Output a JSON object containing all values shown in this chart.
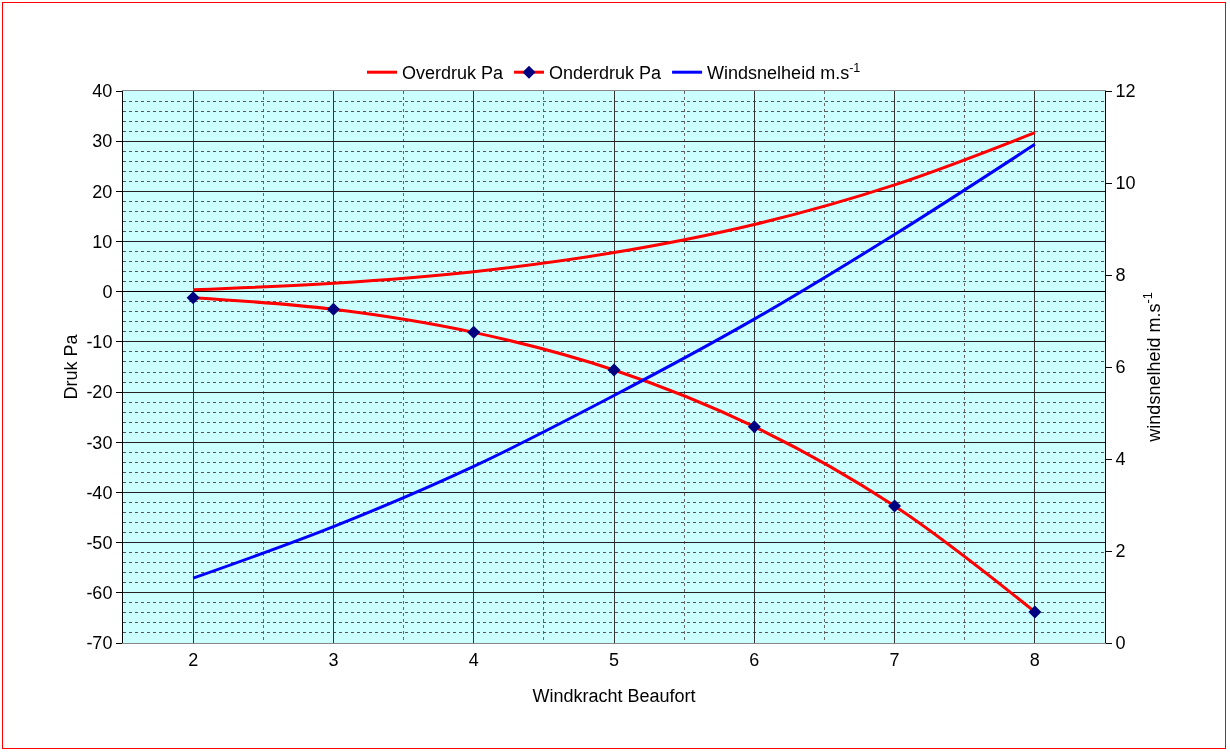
{
  "chart_data": {
    "type": "line",
    "xlabel": "Windkracht Beaufort",
    "ylabel": "Druk Pa",
    "y2label": "windsnelheid m.s$^{-1}$",
    "x": [
      2,
      3,
      4,
      5,
      6,
      7,
      8
    ],
    "series": [
      {
        "name": "Overdruk Pa",
        "color": "#ff0000",
        "marker": "none",
        "values": [
          0.4,
          1.7,
          4.0,
          7.8,
          13.4,
          21.3,
          31.7
        ]
      },
      {
        "name": "Onderdruk Pa",
        "color": "#ff0000",
        "marker": "diamond",
        "values": [
          -1.2,
          -3.5,
          -8.1,
          -15.6,
          -26.9,
          -42.7,
          -63.8
        ]
      },
      {
        "name": "Windsnelheid m.s$^{-1}$",
        "color": "#0000ff",
        "marker": "none",
        "axis": "y2",
        "values": [
          1.41,
          2.53,
          3.84,
          5.38,
          7.04,
          8.88,
          10.84
        ]
      }
    ],
    "xlim": [
      1.5,
      8.5
    ],
    "xticks": [
      2,
      3,
      4,
      5,
      6,
      7,
      8
    ],
    "ylim": [
      -70,
      40
    ],
    "yticks": [
      -70,
      -60,
      -50,
      -40,
      -30,
      -20,
      -10,
      0,
      10,
      20,
      30,
      40
    ],
    "y2lim": [
      0,
      12
    ],
    "y2ticks": [
      0,
      2,
      4,
      6,
      8,
      10,
      12
    ],
    "grid": true,
    "legend": "top"
  }
}
